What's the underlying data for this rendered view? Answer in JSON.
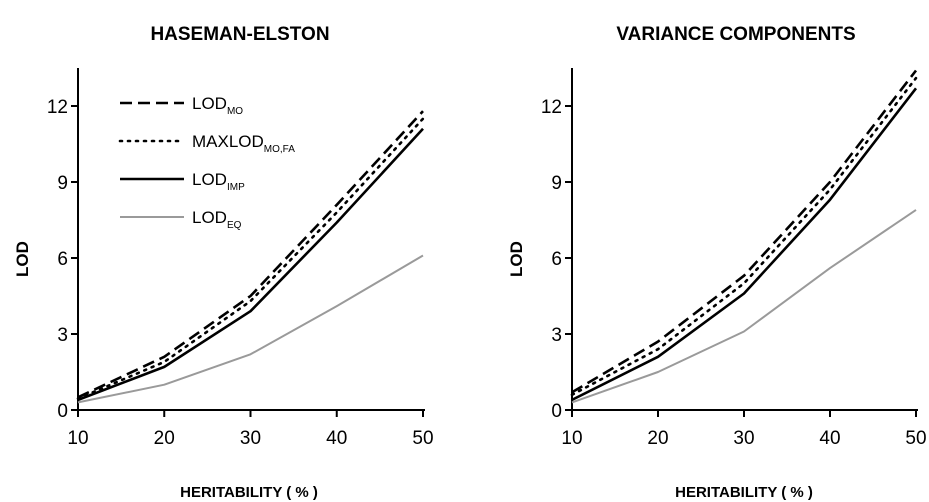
{
  "chart_data": [
    {
      "type": "line",
      "title": "HASEMAN-ELSTON",
      "xlabel": "HERITABILITY ( % )",
      "ylabel": "LOD",
      "x": [
        10,
        20,
        30,
        40,
        50
      ],
      "xticks": [
        10,
        20,
        30,
        40,
        50
      ],
      "yticks": [
        0,
        3,
        6,
        9,
        12
      ],
      "xlim": [
        10,
        50
      ],
      "ylim": [
        0,
        13.5
      ],
      "grid": false,
      "legend": "top-left",
      "series": [
        {
          "name": "LOD",
          "sub": "MO",
          "style": "dashed",
          "values": [
            0.5,
            2.1,
            4.5,
            8.1,
            11.8
          ]
        },
        {
          "name": "MAXLOD",
          "sub": "MO,FA",
          "style": "dotted",
          "values": [
            0.45,
            1.9,
            4.3,
            7.8,
            11.5
          ]
        },
        {
          "name": "LOD",
          "sub": "IMP",
          "style": "solid",
          "values": [
            0.4,
            1.7,
            3.9,
            7.4,
            11.1
          ]
        },
        {
          "name": "LOD",
          "sub": "EQ",
          "style": "gray",
          "values": [
            0.3,
            1.0,
            2.2,
            4.1,
            6.1
          ]
        }
      ]
    },
    {
      "type": "line",
      "title": "VARIANCE COMPONENTS",
      "xlabel": "HERITABILITY ( % )",
      "ylabel": "LOD",
      "x": [
        10,
        20,
        30,
        40,
        50
      ],
      "xticks": [
        10,
        20,
        30,
        40,
        50
      ],
      "yticks": [
        0,
        3,
        6,
        9,
        12
      ],
      "xlim": [
        10,
        50
      ],
      "ylim": [
        0,
        13.5
      ],
      "grid": false,
      "legend": "none",
      "series": [
        {
          "name": "LOD",
          "sub": "MO",
          "style": "dashed",
          "values": [
            0.7,
            2.7,
            5.3,
            9.0,
            13.4
          ]
        },
        {
          "name": "MAXLOD",
          "sub": "MO,FA",
          "style": "dotted",
          "values": [
            0.6,
            2.4,
            5.0,
            8.7,
            13.1
          ]
        },
        {
          "name": "LOD",
          "sub": "IMP",
          "style": "solid",
          "values": [
            0.4,
            2.1,
            4.6,
            8.3,
            12.7
          ]
        },
        {
          "name": "LOD",
          "sub": "EQ",
          "style": "gray",
          "values": [
            0.3,
            1.5,
            3.1,
            5.6,
            7.9
          ]
        }
      ]
    }
  ],
  "styles": {
    "dashed": "#000000",
    "dotted": "#000000",
    "solid": "#000000",
    "gray": "#9a9a9a"
  }
}
